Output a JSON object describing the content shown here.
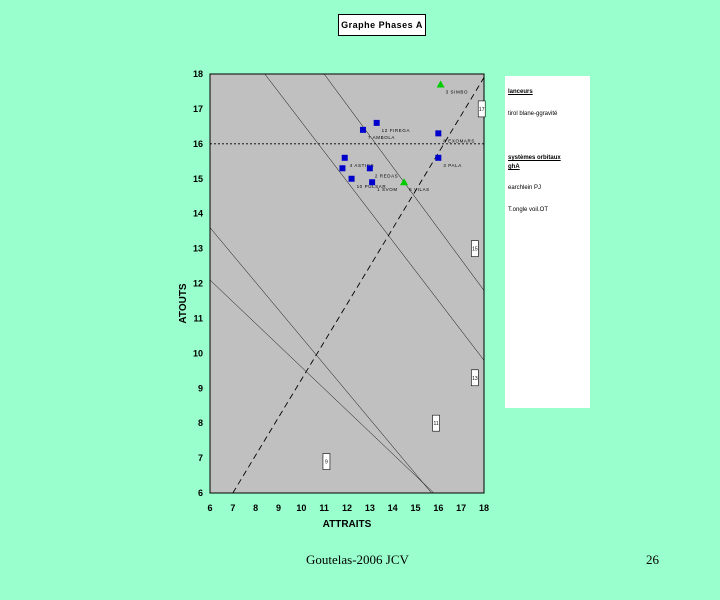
{
  "chart_data": {
    "type": "scatter",
    "title": "Graphe Phases A",
    "xlabel": "ATTRAITS",
    "ylabel": "ATOUTS",
    "xlim": [
      6,
      18
    ],
    "ylim": [
      6,
      18
    ],
    "x_ticks": [
      "6",
      "7",
      "8",
      "9",
      "10",
      "11",
      "12",
      "13",
      "14",
      "15",
      "16",
      "17",
      "18"
    ],
    "y_ticks": [
      "6",
      "7",
      "8",
      "9",
      "10",
      "11",
      "12",
      "13",
      "14",
      "15",
      "16",
      "17",
      "18"
    ],
    "grid": false,
    "reference_lines": [
      {
        "style": "dashed",
        "from": [
          7,
          6
        ],
        "to": [
          18,
          17.9
        ]
      },
      {
        "style": "dotted",
        "from": [
          6,
          16
        ],
        "to": [
          18,
          16
        ]
      },
      {
        "style": "thin",
        "from": [
          8.4,
          18
        ],
        "to": [
          18,
          9.8
        ]
      },
      {
        "style": "thin",
        "from": [
          11,
          18
        ],
        "to": [
          18,
          11.8
        ]
      },
      {
        "style": "thin",
        "from": [
          6,
          12.1
        ],
        "to": [
          15.8,
          6
        ]
      },
      {
        "style": "thin",
        "from": [
          6,
          13.6
        ],
        "to": [
          18,
          4.2
        ]
      }
    ],
    "series": [
      {
        "marker": "square",
        "color": "#0000cc",
        "points": [
          {
            "x": 13.3,
            "y": 16.6,
            "label": "12 FIREGA"
          },
          {
            "x": 12.7,
            "y": 16.4,
            "label": "7 AMBOLA"
          },
          {
            "x": 16.0,
            "y": 16.3,
            "label": "8 EXOMARS"
          },
          {
            "x": 11.9,
            "y": 15.6,
            "label": "4 ASTICS"
          },
          {
            "x": 16.0,
            "y": 15.6,
            "label": "3 PALA"
          },
          {
            "x": 11.8,
            "y": 15.3,
            "label": ""
          },
          {
            "x": 13.0,
            "y": 15.3,
            "label": "2 REDAS"
          },
          {
            "x": 12.2,
            "y": 15.0,
            "label": "10 PULSAR"
          },
          {
            "x": 13.1,
            "y": 14.9,
            "label": "1 SVOM"
          }
        ]
      },
      {
        "marker": "triangle",
        "color": "#00cc00",
        "points": [
          {
            "x": 16.1,
            "y": 17.7,
            "label": "3 SIMBO"
          },
          {
            "x": 14.5,
            "y": 14.9,
            "label": "5 VILAS"
          }
        ]
      }
    ],
    "zone_labels": [
      {
        "x": 17.9,
        "y": 17.0,
        "text": "17"
      },
      {
        "x": 17.6,
        "y": 13.0,
        "text": "15"
      },
      {
        "x": 17.6,
        "y": 9.3,
        "text": "13"
      },
      {
        "x": 15.9,
        "y": 8.0,
        "text": "11"
      },
      {
        "x": 11.1,
        "y": 6.9,
        "text": "9"
      }
    ]
  },
  "legend_panel": {
    "heading": "lanceurs",
    "line1": "tirol blane-ggravité",
    "heading2": "systèmes orbitaux",
    "heading2b": "ghA",
    "line2": "earchlein PJ",
    "line3": "T.ongle voil.OT"
  },
  "footer": {
    "left": "Goutelas-2006 JCV",
    "right": "26"
  }
}
